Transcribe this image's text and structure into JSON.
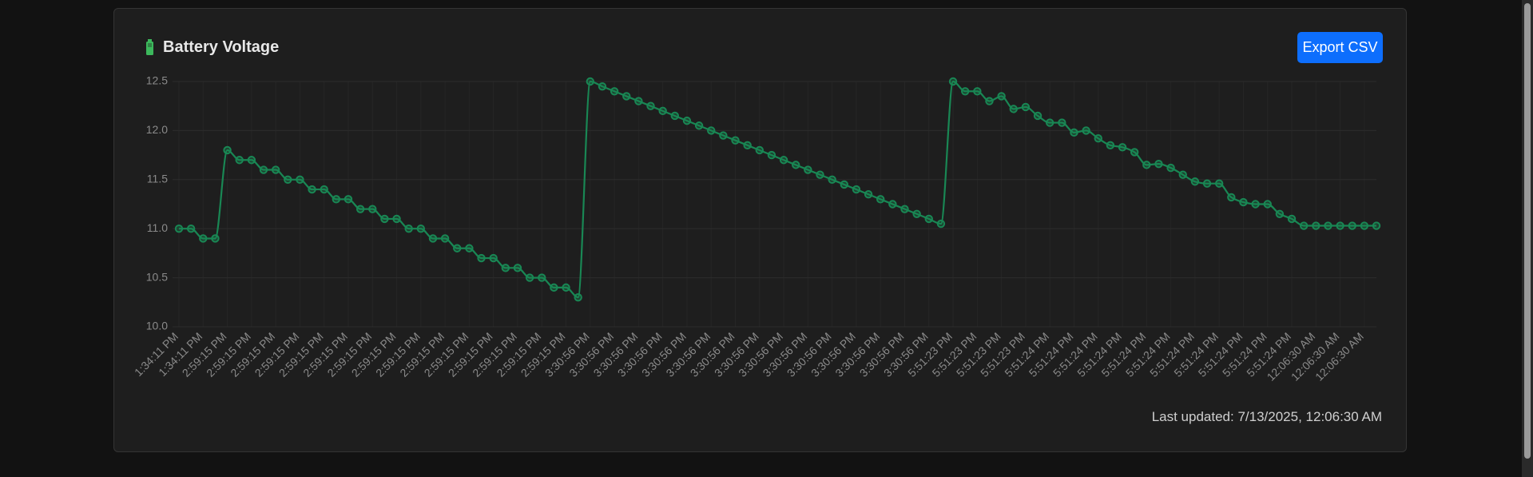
{
  "chart_data": {
    "type": "line",
    "title": "Battery Voltage",
    "categories": [
      "1:34:11 PM",
      null,
      "1:34:11 PM",
      null,
      "2:59:15 PM",
      null,
      "2:59:15 PM",
      null,
      "2:59:15 PM",
      null,
      "2:59:15 PM",
      null,
      "2:59:15 PM",
      null,
      "2:59:15 PM",
      null,
      "2:59:15 PM",
      null,
      "2:59:15 PM",
      null,
      "2:59:15 PM",
      null,
      "2:59:15 PM",
      null,
      "2:59:15 PM",
      null,
      "2:59:15 PM",
      null,
      "2:59:15 PM",
      null,
      "2:59:15 PM",
      null,
      "2:59:15 PM",
      null,
      "3:30:56 PM",
      null,
      "3:30:56 PM",
      null,
      "3:30:56 PM",
      null,
      "3:30:56 PM",
      null,
      "3:30:56 PM",
      null,
      "3:30:56 PM",
      null,
      "3:30:56 PM",
      null,
      "3:30:56 PM",
      null,
      "3:30:56 PM",
      null,
      "3:30:56 PM",
      null,
      "3:30:56 PM",
      null,
      "3:30:56 PM",
      null,
      "3:30:56 PM",
      null,
      "3:30:56 PM",
      null,
      "3:30:56 PM",
      null,
      "5:51:23 PM",
      null,
      "5:51:23 PM",
      null,
      "5:51:23 PM",
      null,
      "5:51:23 PM",
      null,
      "5:51:24 PM",
      null,
      "5:51:24 PM",
      null,
      "5:51:24 PM",
      null,
      "5:51:24 PM",
      null,
      "5:51:24 PM",
      null,
      "5:51:24 PM",
      null,
      "5:51:24 PM",
      null,
      "5:51:24 PM",
      null,
      "5:51:24 PM",
      null,
      "5:51:24 PM",
      null,
      "5:51:24 PM",
      null,
      "12:06:30 AM",
      null,
      "12:06:30 AM",
      null,
      "12:06:30 AM",
      null
    ],
    "series": [
      {
        "name": "Battery Voltage",
        "color": "#198754",
        "values": [
          11.0,
          11.0,
          10.9,
          10.9,
          11.8,
          11.7,
          11.7,
          11.6,
          11.6,
          11.5,
          11.5,
          11.4,
          11.4,
          11.3,
          11.3,
          11.2,
          11.2,
          11.1,
          11.1,
          11.0,
          11.0,
          10.9,
          10.9,
          10.8,
          10.8,
          10.7,
          10.7,
          10.6,
          10.6,
          10.5,
          10.5,
          10.4,
          10.4,
          10.3,
          12.5,
          12.45,
          12.4,
          12.35,
          12.3,
          12.25,
          12.2,
          12.15,
          12.1,
          12.05,
          12.0,
          11.95,
          11.9,
          11.85,
          11.8,
          11.75,
          11.7,
          11.65,
          11.6,
          11.55,
          11.5,
          11.45,
          11.4,
          11.35,
          11.3,
          11.25,
          11.2,
          11.15,
          11.1,
          11.05,
          12.5,
          12.4,
          12.4,
          12.3,
          12.35,
          12.22,
          12.24,
          12.15,
          12.08,
          12.08,
          11.98,
          12.0,
          11.92,
          11.85,
          11.83,
          11.78,
          11.65,
          11.66,
          11.62,
          11.55,
          11.48,
          11.46,
          11.46,
          11.32,
          11.27,
          11.25,
          11.25,
          11.15,
          11.1,
          11.03,
          11.03,
          11.03,
          11.03,
          11.03,
          11.03,
          11.03
        ]
      }
    ],
    "ylim": [
      10.0,
      12.5
    ],
    "yticks": [
      {
        "value": 10,
        "label": "10.0"
      },
      10.5,
      {
        "value": 11,
        "label": "11.0"
      },
      11.5,
      {
        "value": 12,
        "label": "12.0"
      },
      12.5
    ],
    "grid": true
  },
  "button": "Export CSV",
  "footer": "Last updated: 7/13/2025, 12:06:30 AM"
}
